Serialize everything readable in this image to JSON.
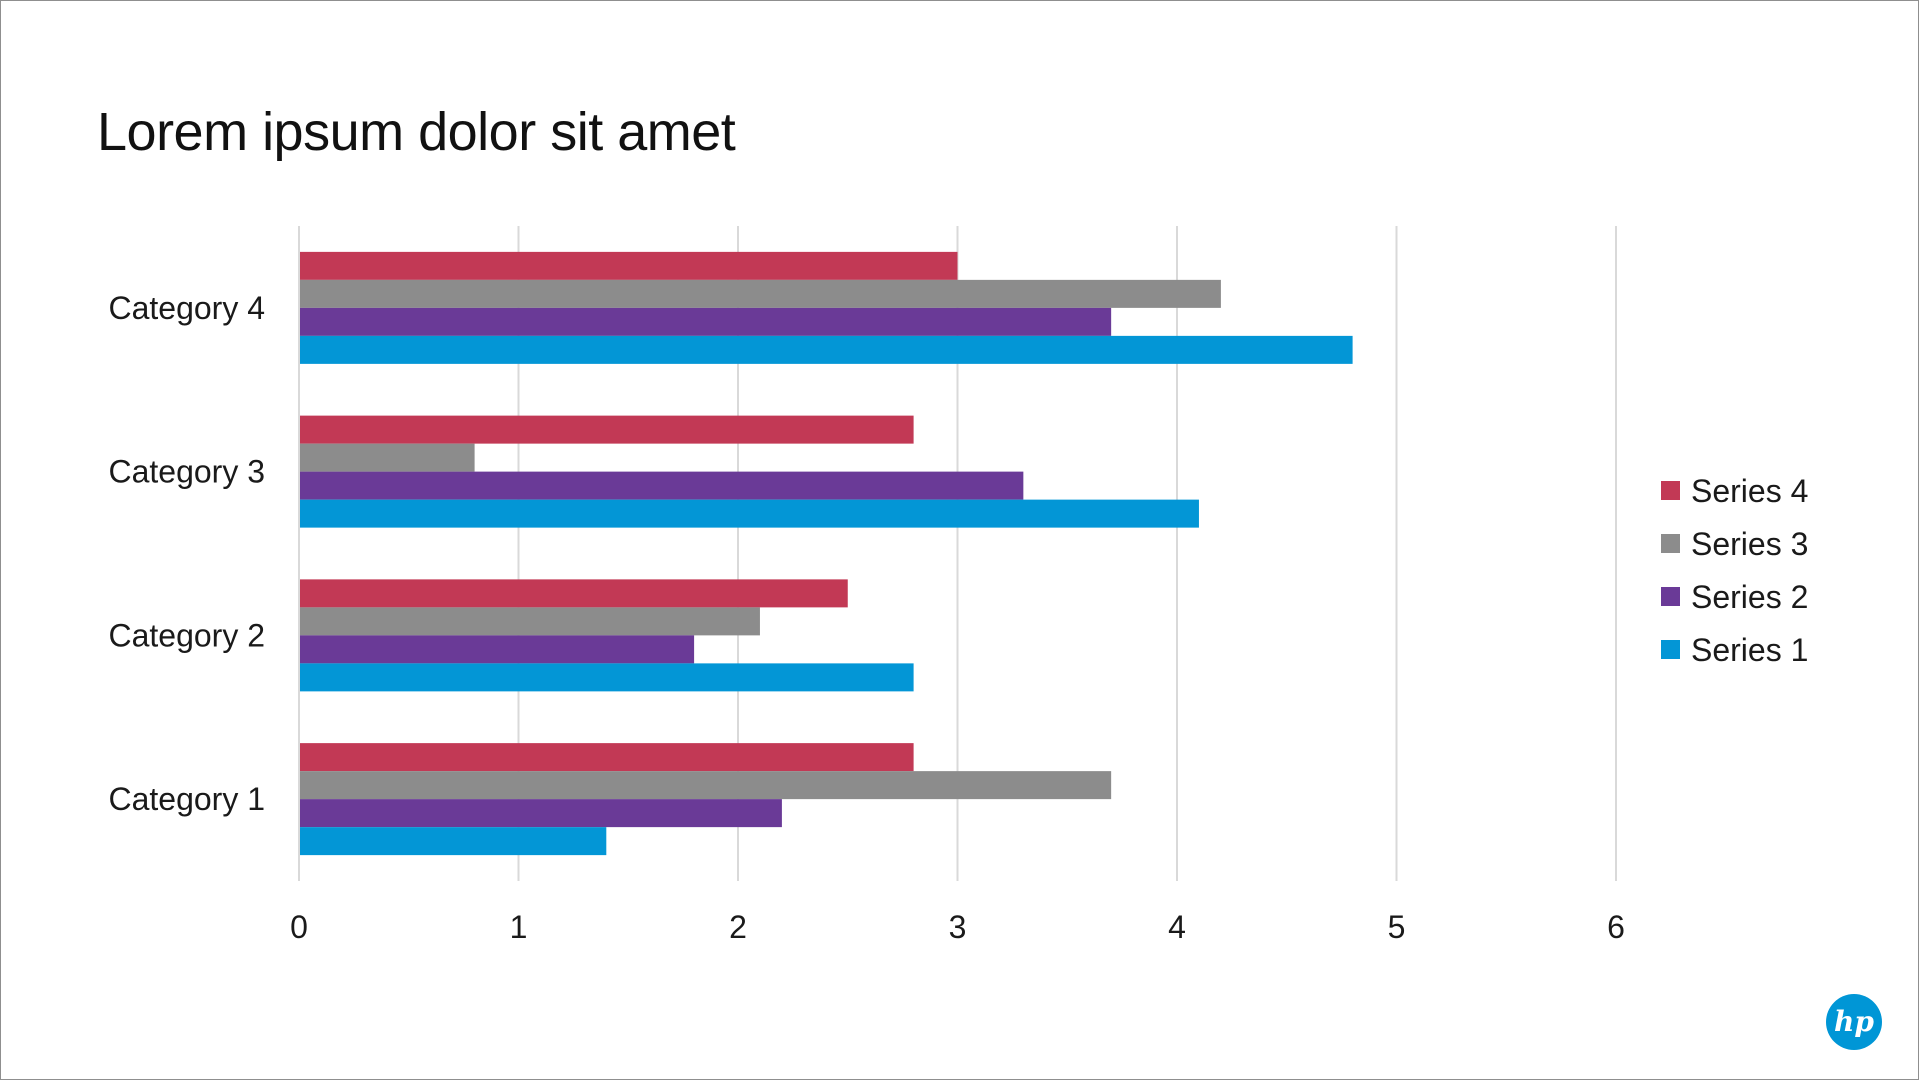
{
  "slide": {
    "title": "Lorem ipsum dolor sit amet",
    "logo_text": "hp"
  },
  "colors": {
    "series_1": "#0396d6",
    "series_2": "#6a3a97",
    "series_3": "#8c8c8c",
    "series_4": "#c23955",
    "gridline": "#d9d9d9",
    "text": "#1a1a1a",
    "logo": "#0096d6"
  },
  "chart_data": {
    "type": "bar",
    "orientation": "horizontal",
    "title": "Lorem ipsum dolor sit amet",
    "categories": [
      "Category 1",
      "Category 2",
      "Category 3",
      "Category 4"
    ],
    "series": [
      {
        "name": "Series 1",
        "values": [
          1.4,
          2.8,
          4.1,
          4.8
        ]
      },
      {
        "name": "Series 2",
        "values": [
          2.2,
          1.8,
          3.3,
          3.7
        ]
      },
      {
        "name": "Series 3",
        "values": [
          3.7,
          2.1,
          0.8,
          4.2
        ]
      },
      {
        "name": "Series 4",
        "values": [
          2.8,
          2.5,
          2.8,
          3.0
        ]
      }
    ],
    "xlim": [
      0,
      6
    ],
    "x_ticks": [
      "0",
      "1",
      "2",
      "3",
      "4",
      "5",
      "6"
    ],
    "grid": true,
    "legend": {
      "position": "right",
      "order": [
        "Series 4",
        "Series 3",
        "Series 2",
        "Series 1"
      ]
    }
  }
}
